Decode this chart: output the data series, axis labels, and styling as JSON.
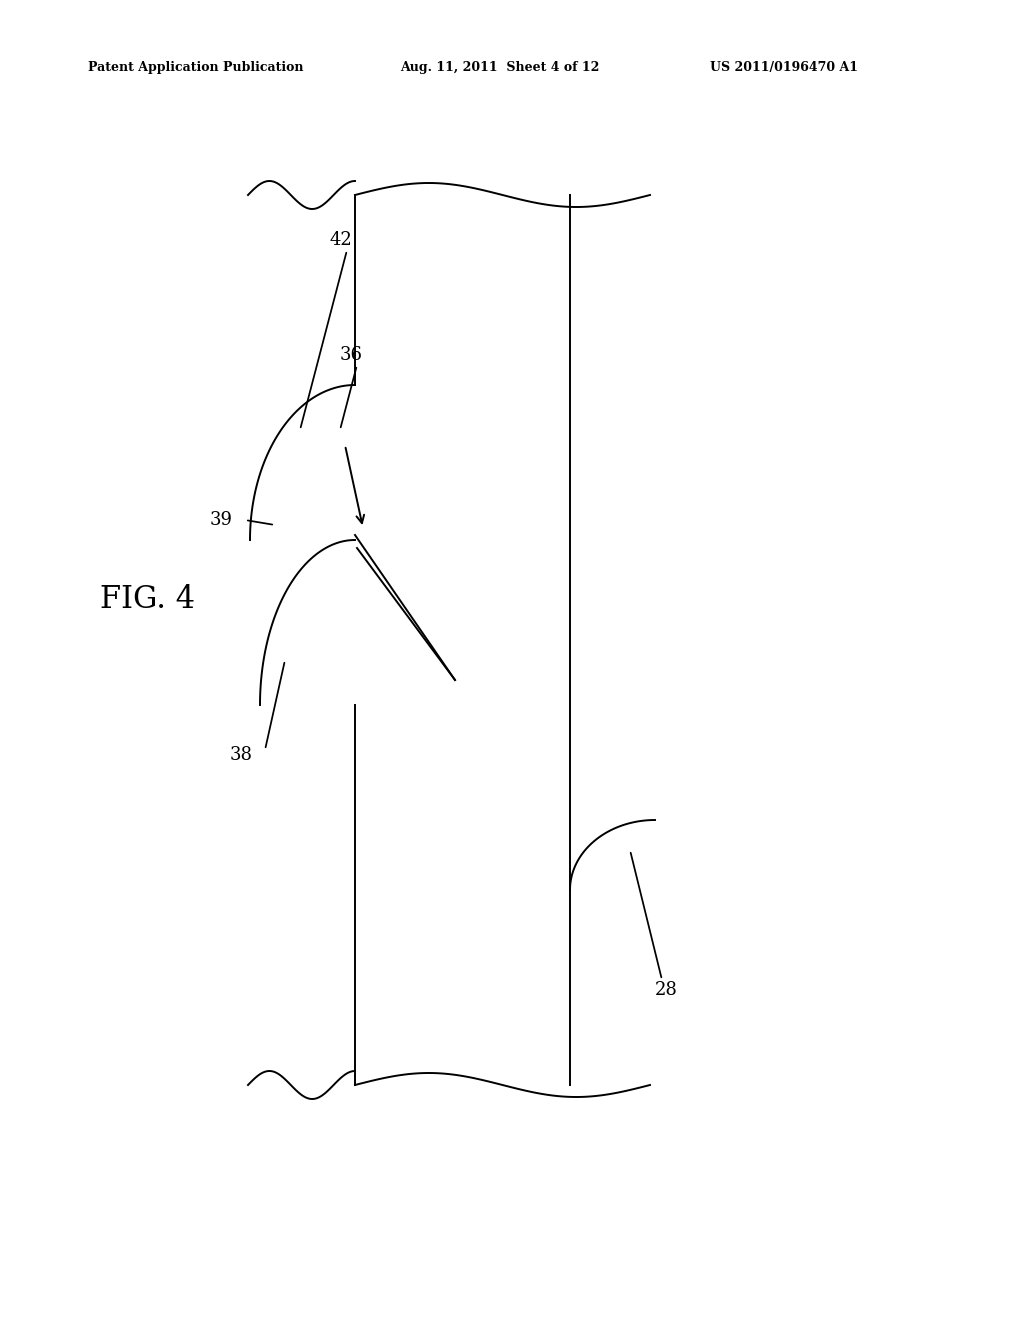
{
  "bg_color": "#ffffff",
  "line_color": "#000000",
  "header_left": "Patent Application Publication",
  "header_center": "Aug. 11, 2011  Sheet 4 of 12",
  "header_right": "US 2011/0196470 A1",
  "fig_label": "FIG. 4",
  "lw": 1.4
}
